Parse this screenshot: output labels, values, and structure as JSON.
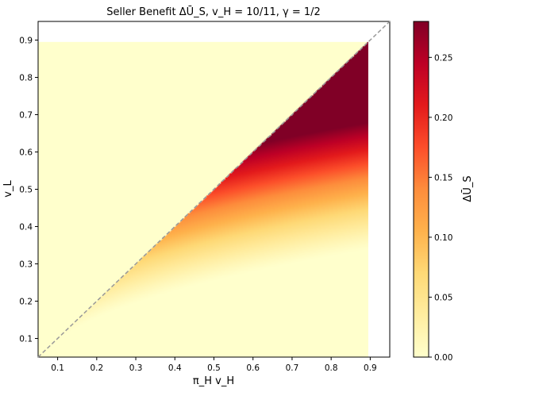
{
  "chart_data": {
    "type": "heatmap",
    "title": "Seller Benefit ΔŪ_S, v_H = 10/11, γ = 1/2",
    "xlabel": "π_H v_H",
    "ylabel": "v_L",
    "colorbar_label": "ΔŪ_S",
    "xlim": [
      0.05,
      0.95
    ],
    "ylim": [
      0.05,
      0.95
    ],
    "x_ticks": [
      0.1,
      0.2,
      0.3,
      0.4,
      0.5,
      0.6,
      0.7,
      0.8,
      0.9
    ],
    "y_ticks": [
      0.1,
      0.2,
      0.3,
      0.4,
      0.5,
      0.6,
      0.7,
      0.8,
      0.9
    ],
    "x_tick_labels": [
      "0.1",
      "0.2",
      "0.3",
      "0.4",
      "0.5",
      "0.6",
      "0.7",
      "0.8",
      "0.9"
    ],
    "y_tick_labels": [
      "0.1",
      "0.2",
      "0.3",
      "0.4",
      "0.5",
      "0.6",
      "0.7",
      "0.8",
      "0.9"
    ],
    "colorbar_range": [
      0,
      0.28
    ],
    "colorbar_ticks": [
      0.0,
      0.05,
      0.1,
      0.15,
      0.2,
      0.25
    ],
    "colorbar_tick_labels": [
      "0.00",
      "0.05",
      "0.10",
      "0.15",
      "0.20",
      "0.25"
    ],
    "colormap": "YlOrRd",
    "colormap_stops": [
      "#ffffcc",
      "#ffeda0",
      "#fed976",
      "#feb24c",
      "#fd8d3c",
      "#fc4e2a",
      "#e31a1c",
      "#bd0026",
      "#800026"
    ],
    "data_extent": {
      "x": [
        0.05,
        0.895
      ],
      "y": [
        0.05,
        0.895
      ]
    },
    "zero_region": "v_L > π_H v_H",
    "reference_line": {
      "style": "dashed",
      "color": "#999999",
      "from": [
        0.05,
        0.05
      ],
      "to": [
        0.95,
        0.95
      ]
    },
    "sample_values": [
      {
        "x": 0.3,
        "y": 0.25,
        "value": 0.03
      },
      {
        "x": 0.5,
        "y": 0.4,
        "value": 0.08
      },
      {
        "x": 0.6,
        "y": 0.5,
        "value": 0.14
      },
      {
        "x": 0.8,
        "y": 0.5,
        "value": 0.15
      },
      {
        "x": 0.8,
        "y": 0.6,
        "value": 0.21
      },
      {
        "x": 0.85,
        "y": 0.75,
        "value": 0.28
      },
      {
        "x": 0.89,
        "y": 0.35,
        "value": 0.04
      }
    ]
  }
}
